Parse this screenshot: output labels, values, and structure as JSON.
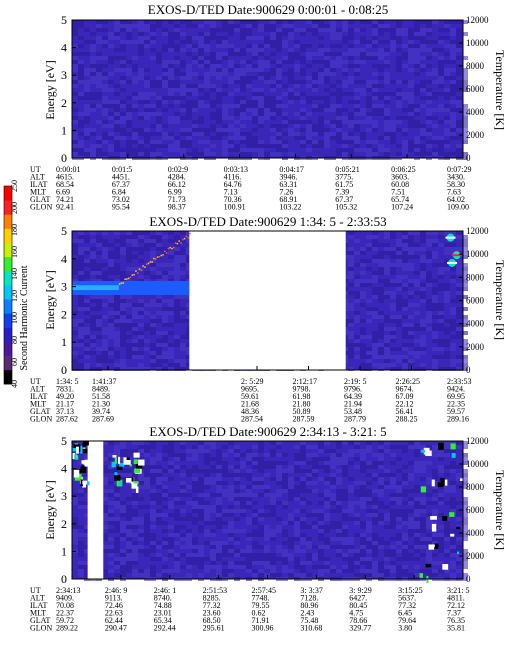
{
  "colorbar": {
    "label": "Second Harmonic Current",
    "ticks": [
      "40",
      "60",
      "80",
      "100",
      "120",
      "140",
      "160",
      "180",
      "200",
      "250"
    ],
    "colors": [
      "#000000",
      "#5a2a78",
      "#4a1a9c",
      "#2a1ec8",
      "#1040f0",
      "#0a80ff",
      "#00c8ff",
      "#00e8c0",
      "#30f030",
      "#c8f000",
      "#ffd000",
      "#ff8000",
      "#ff2020",
      "#ff0000"
    ]
  },
  "colors": {
    "background": "#3a26b8",
    "background_dark": "#2c1c9a",
    "background_light": "#4a38c8",
    "band_bright": "#1c5cff",
    "band_cyan": "#22b0ff"
  },
  "chart_data": [
    {
      "type": "heatmap",
      "title": "EXOS-D/TED   Date:900629   0:00:01 - 0:08:25",
      "ylabel": "Energy [eV]",
      "y2label": "Temperature [K]",
      "ylim": [
        0,
        5
      ],
      "y2lim": [
        0,
        12000
      ],
      "yticks": [
        "0",
        "1",
        "2",
        "3",
        "4",
        "5"
      ],
      "y2ticks": [
        "0",
        "2000",
        "4000",
        "6000",
        "8000",
        "10000",
        "12000"
      ],
      "data_gaps": [],
      "features": [],
      "table": {
        "row_labels": [
          "UT",
          "ALT",
          "ILAT",
          "MLT",
          "GLAT",
          "GLON"
        ],
        "columns": [
          [
            "0:00:01",
            "4615.",
            "68.54",
            "6.69",
            "74.21",
            "92.41"
          ],
          [
            "0:01:5",
            "4451.",
            "67.37",
            "6.84",
            "73.02",
            "95.54"
          ],
          [
            "0:02:9",
            "4284.",
            "66.12",
            "6.99",
            "71.73",
            "98.37"
          ],
          [
            "0:03:13",
            "4116.",
            "64.76",
            "7.13",
            "70.36",
            "100.91"
          ],
          [
            "0:04:17",
            "3946.",
            "63.31",
            "7.26",
            "68.91",
            "103.22"
          ],
          [
            "0:05:21",
            "3775.",
            "61.75",
            "7.39",
            "67.37",
            "105.32"
          ],
          [
            "0:06:25",
            "3603.",
            "60.08",
            "7.51",
            "65.74",
            "107.24"
          ],
          [
            "0:07:29",
            "3430.",
            "58.30",
            "7.63",
            "64.02",
            "109.00"
          ]
        ]
      }
    },
    {
      "type": "heatmap",
      "title": "EXOS-D/TED   Date:900629   1:34: 5 - 2:33:53",
      "ylabel": "Energy [eV]",
      "y2label": "Temperature [K]",
      "ylim": [
        0,
        5
      ],
      "y2lim": [
        0,
        12000
      ],
      "yticks": [
        "0",
        "1",
        "2",
        "3",
        "4",
        "5"
      ],
      "y2ticks": [
        "0",
        "2000",
        "4000",
        "6000",
        "8000",
        "10000",
        "12000"
      ],
      "data_gaps": [
        [
          0.3,
          0.7
        ]
      ],
      "features": [
        {
          "kind": "band",
          "x": [
            0.0,
            0.3
          ],
          "y": [
            2.7,
            3.2
          ],
          "level": "high"
        },
        {
          "kind": "dots",
          "x": [
            0.12,
            0.3
          ],
          "y": [
            3.1,
            4.9
          ],
          "level": "hot"
        },
        {
          "kind": "spot",
          "x": [
            0.96,
            1.0
          ],
          "y": [
            3.5,
            4.9
          ],
          "level": "max"
        }
      ],
      "table": {
        "row_labels": [
          "UT",
          "ALT",
          "ILAT",
          "MLT",
          "GLAT",
          "GLON"
        ],
        "columns": [
          [
            "1:34: 5",
            "7831.",
            "49.20",
            "21.17",
            "37.13",
            "287.62"
          ],
          [
            "1:41:37",
            "8489.",
            "51.58",
            "21.30",
            "39.74",
            "287.69"
          ],
          [
            "2: 5:29",
            "9695.",
            "59.61",
            "21.68",
            "48.36",
            "287.54"
          ],
          [
            "2:12:17",
            "9798.",
            "61.98",
            "21.80",
            "50.89",
            "287.59"
          ],
          [
            "2:19: 5",
            "9796.",
            "64.39",
            "21.94",
            "53.48",
            "287.79"
          ],
          [
            "2:26:25",
            "9674.",
            "67.09",
            "22.12",
            "56.41",
            "288.25"
          ],
          [
            "2:33:53",
            "9424.",
            "69.95",
            "22.35",
            "59.57",
            "289.16"
          ]
        ]
      }
    },
    {
      "type": "heatmap",
      "title": "EXOS-D/TED   Date:900629   2:34:13 - 3:21: 5",
      "ylabel": "Energy [eV]",
      "y2label": "Temperature [K]",
      "ylim": [
        0,
        5
      ],
      "y2lim": [
        0,
        12000
      ],
      "yticks": [
        "0",
        "1",
        "2",
        "3",
        "4",
        "5"
      ],
      "y2ticks": [
        "0",
        "2000",
        "4000",
        "6000",
        "8000",
        "10000",
        "12000"
      ],
      "data_gaps": [
        [
          0.04,
          0.08
        ]
      ],
      "features": [
        {
          "kind": "patch",
          "x": [
            0.0,
            0.04
          ],
          "y": [
            3.5,
            5.0
          ],
          "level": "mixed"
        },
        {
          "kind": "patch",
          "x": [
            0.1,
            0.17
          ],
          "y": [
            3.3,
            4.6
          ],
          "level": "mixed"
        },
        {
          "kind": "patch",
          "x": [
            0.88,
            1.0
          ],
          "y": [
            0.0,
            5.0
          ],
          "level": "mixed"
        }
      ],
      "table": {
        "row_labels": [
          "UT",
          "ALT",
          "ILAT",
          "MLT",
          "GLAT",
          "GLON"
        ],
        "columns": [
          [
            "2:34:13",
            "9409.",
            "70.08",
            "22.37",
            "59.72",
            "289.22"
          ],
          [
            "2:46: 9",
            "9113.",
            "72.46",
            "22.63",
            "62.44",
            "290.47"
          ],
          [
            "2:46: 1",
            "8740.",
            "74.88",
            "23.01",
            "65.34",
            "292.44"
          ],
          [
            "2:51:53",
            "8285.",
            "77.32",
            "23.60",
            "68.50",
            "295.61"
          ],
          [
            "2:57:45",
            "7748.",
            "79.55",
            "0.62",
            "71.91",
            "300.96"
          ],
          [
            "3: 3:37",
            "7128.",
            "80.96",
            "2.43",
            "75.48",
            "310.68"
          ],
          [
            "3: 9:29",
            "6427.",
            "80.45",
            "4.75",
            "78.66",
            "329.77"
          ],
          [
            "3:15:25",
            "5637.",
            "77.32",
            "6.45",
            "79.64",
            "3.80"
          ],
          [
            "3:21: 5",
            "4811.",
            "72.12",
            "7.37",
            "76.35",
            "35.81"
          ]
        ]
      }
    }
  ]
}
